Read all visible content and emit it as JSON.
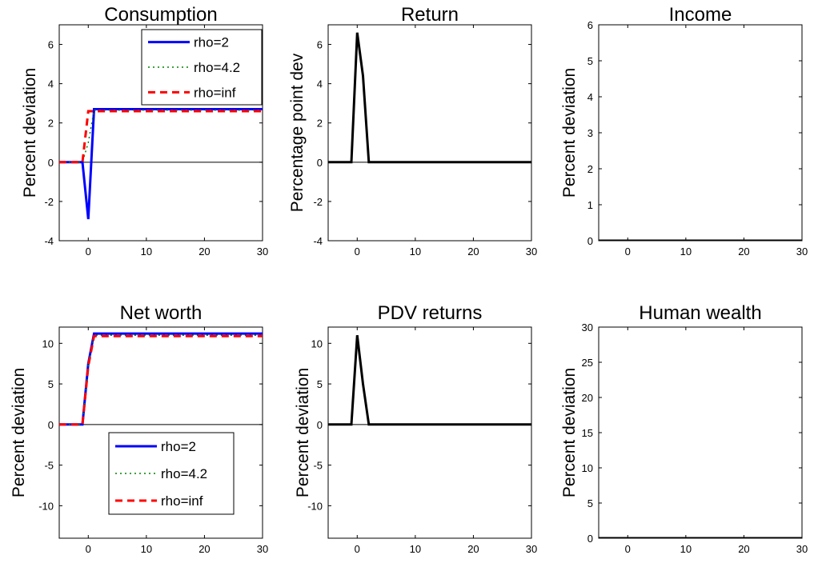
{
  "chart_data": [
    {
      "type": "line",
      "title": "Consumption",
      "ylabel": "Percent deviation",
      "xlim": [
        -5,
        30
      ],
      "ylim": [
        -4,
        7
      ],
      "xticks": [
        0,
        10,
        20,
        30
      ],
      "yticks": [
        -4,
        -2,
        0,
        2,
        4,
        6
      ],
      "legend_position": "top-right",
      "zero_line": true,
      "series": [
        {
          "name": "rho=2",
          "color": "#0000ff",
          "style": "solid",
          "x": [
            -5,
            -1,
            0,
            1,
            30
          ],
          "y": [
            0,
            0,
            -2.9,
            2.7,
            2.7
          ]
        },
        {
          "name": "rho=4.2",
          "color": "#008000",
          "style": "dotted",
          "x": [
            -5,
            -1,
            0,
            1,
            30
          ],
          "y": [
            0,
            0,
            1.0,
            2.65,
            2.65
          ]
        },
        {
          "name": "rho=inf",
          "color": "#ff0000",
          "style": "dashed",
          "x": [
            -5,
            -1,
            0,
            30
          ],
          "y": [
            0,
            0,
            2.6,
            2.6
          ]
        }
      ]
    },
    {
      "type": "line",
      "title": "Return",
      "ylabel": "Percentage point dev",
      "xlim": [
        -5,
        30
      ],
      "ylim": [
        -4,
        7
      ],
      "xticks": [
        0,
        10,
        20,
        30
      ],
      "yticks": [
        -4,
        -2,
        0,
        2,
        4,
        6
      ],
      "zero_line": true,
      "series": [
        {
          "color": "#000000",
          "style": "solid",
          "x": [
            -5,
            -1,
            0,
            1,
            2,
            30
          ],
          "y": [
            0,
            0,
            6.6,
            4.4,
            0,
            0
          ]
        }
      ]
    },
    {
      "type": "line",
      "title": "Income",
      "ylabel": "Percent deviation",
      "xlim": [
        -5,
        30
      ],
      "ylim": [
        0,
        6
      ],
      "xticks": [
        0,
        10,
        20,
        30
      ],
      "yticks": [
        0,
        1,
        2,
        3,
        4,
        5,
        6
      ],
      "zero_line": false,
      "series": [
        {
          "color": "#000000",
          "style": "solid",
          "x": [
            -5,
            30
          ],
          "y": [
            0,
            0
          ]
        }
      ]
    },
    {
      "type": "line",
      "title": "Net worth",
      "ylabel": "Percent deviation",
      "xlim": [
        -5,
        30
      ],
      "ylim": [
        -14,
        12
      ],
      "xticks": [
        0,
        10,
        20,
        30
      ],
      "yticks": [
        -10,
        -5,
        0,
        5,
        10
      ],
      "legend_position": "bottom-center",
      "zero_line": true,
      "series": [
        {
          "name": "rho=2",
          "color": "#0000ff",
          "style": "solid",
          "x": [
            -5,
            -1,
            0,
            1,
            30
          ],
          "y": [
            0,
            0,
            7.5,
            11.2,
            11.2
          ]
        },
        {
          "name": "rho=4.2",
          "color": "#008000",
          "style": "dotted",
          "x": [
            -5,
            -1,
            0,
            1,
            30
          ],
          "y": [
            0,
            0,
            7.3,
            11.0,
            11.0
          ]
        },
        {
          "name": "rho=inf",
          "color": "#ff0000",
          "style": "dashed",
          "x": [
            -5,
            -1,
            0,
            1,
            30
          ],
          "y": [
            0,
            0,
            7.2,
            10.9,
            10.9
          ]
        }
      ]
    },
    {
      "type": "line",
      "title": "PDV returns",
      "ylabel": "Percent deviation",
      "xlim": [
        -5,
        30
      ],
      "ylim": [
        -14,
        12
      ],
      "xticks": [
        0,
        10,
        20,
        30
      ],
      "yticks": [
        -10,
        -5,
        0,
        5,
        10
      ],
      "zero_line": true,
      "series": [
        {
          "color": "#000000",
          "style": "solid",
          "x": [
            -5,
            -1,
            0,
            1,
            2,
            30
          ],
          "y": [
            0,
            0,
            11.0,
            5.0,
            0,
            0
          ]
        }
      ]
    },
    {
      "type": "line",
      "title": "Human wealth",
      "ylabel": "Percent deviation",
      "xlim": [
        -5,
        30
      ],
      "ylim": [
        0,
        30
      ],
      "xticks": [
        0,
        10,
        20,
        30
      ],
      "yticks": [
        0,
        5,
        10,
        15,
        20,
        25,
        30
      ],
      "zero_line": false,
      "series": [
        {
          "color": "#000000",
          "style": "solid",
          "x": [
            -5,
            30
          ],
          "y": [
            0,
            0
          ]
        }
      ]
    }
  ]
}
